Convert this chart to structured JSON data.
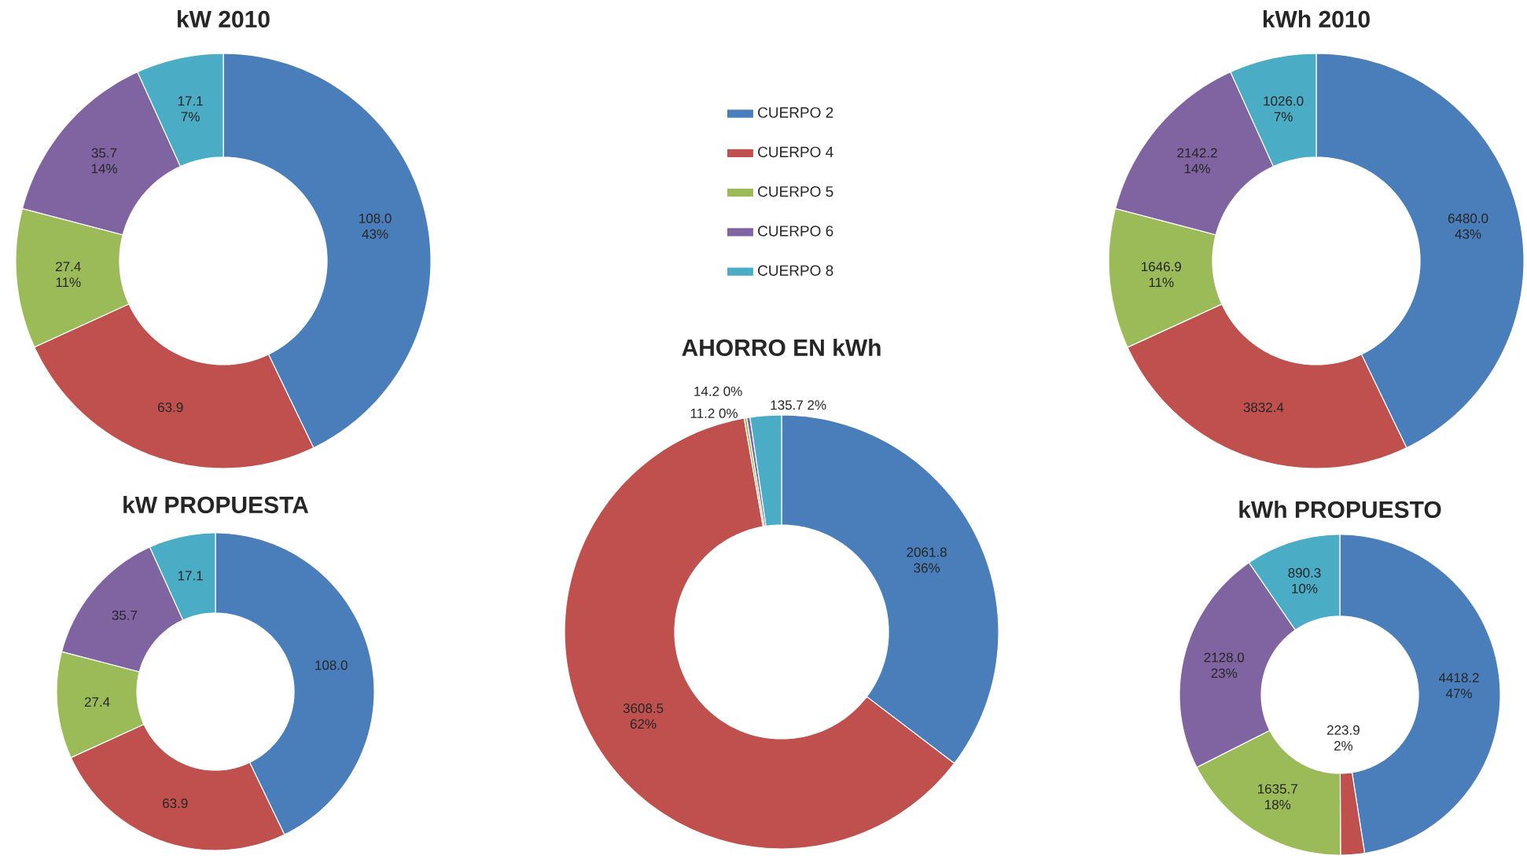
{
  "chart_data": [
    {
      "type": "donut",
      "title": "kW 2010",
      "categories": [
        null,
        null,
        null,
        null,
        null
      ],
      "values": [
        108.0,
        63.9,
        27.4,
        35.7,
        17.1
      ],
      "colors": [
        "#4a7ebb",
        "#c0504d",
        "#9bbb59",
        "#8064a2",
        "#4bacc6"
      ],
      "value_labels": [
        "108.0 43%",
        "63.9",
        "27.4 11%",
        "35.7 14%",
        "17.1 7%"
      ]
    },
    {
      "type": "donut",
      "title": "kWh 2010",
      "categories": [
        null,
        null,
        null,
        null,
        null
      ],
      "values": [
        6480.0,
        3832.4,
        1646.9,
        2142.2,
        1026.0
      ],
      "colors": [
        "#4a7ebb",
        "#c0504d",
        "#9bbb59",
        "#8064a2",
        "#4bacc6"
      ],
      "value_labels": [
        "6480.0 43%",
        "3832.4",
        "1646.9 11%",
        "2142.2 14%",
        "1026.0 7%"
      ]
    },
    {
      "type": "donut",
      "title": "AHORRO EN kWh",
      "categories": [
        "CUERPO 2",
        "CUERPO 4",
        "CUERPO 5",
        "CUERPO 6",
        "CUERPO 8"
      ],
      "values": [
        2061.8,
        3608.5,
        11.2,
        14.2,
        135.7
      ],
      "colors": [
        "#4a7ebb",
        "#c0504d",
        "#9bbb59",
        "#8064a2",
        "#4bacc6"
      ],
      "value_labels": [
        "2061.8 36%",
        "3608.5 62%",
        "11.2 0%",
        "14.2 0%",
        "135.7 2%"
      ],
      "legend": "top"
    },
    {
      "type": "donut",
      "title": "kW PROPUESTA",
      "categories": [
        null,
        null,
        null,
        null,
        null
      ],
      "values": [
        108.0,
        63.9,
        27.4,
        35.7,
        17.1
      ],
      "colors": [
        "#4a7ebb",
        "#c0504d",
        "#9bbb59",
        "#8064a2",
        "#4bacc6"
      ],
      "value_labels": [
        "108.0",
        "63.9",
        "27.4",
        "35.7",
        "17.1"
      ]
    },
    {
      "type": "donut",
      "title": "kWh PROPUESTO",
      "categories": [
        null,
        null,
        null,
        null,
        null
      ],
      "values": [
        4418.2,
        223.9,
        1635.7,
        2128.0,
        890.3
      ],
      "colors": [
        "#4a7ebb",
        "#c0504d",
        "#9bbb59",
        "#8064a2",
        "#4bacc6"
      ],
      "value_labels": [
        "4418.2 47%",
        "223.9 2%",
        "1635.7 18%",
        "2128.0 23%",
        "890.3 10%"
      ]
    }
  ]
}
